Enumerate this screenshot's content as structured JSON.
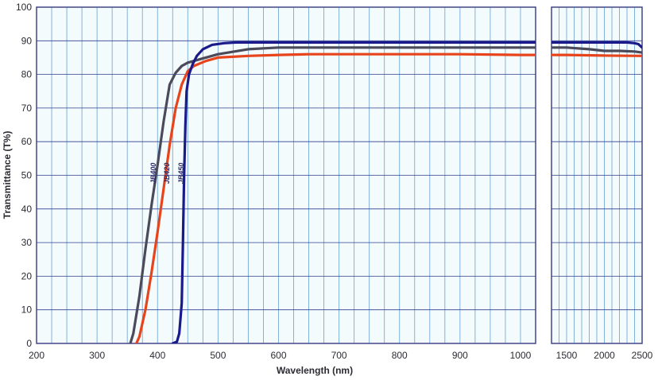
{
  "chart_data": {
    "type": "line",
    "xlabel": "Wavelength (nm)",
    "ylabel": "Transmittance (T%)",
    "ylim": [
      0,
      100
    ],
    "xlim_main": [
      200,
      1025
    ],
    "xlim_ext": [
      1300,
      2500
    ],
    "grid": true,
    "y_ticks": [
      "0",
      "10",
      "20",
      "30",
      "40",
      "50",
      "60",
      "70",
      "80",
      "90",
      "100"
    ],
    "x_ticks_main": [
      "200",
      "300",
      "400",
      "500",
      "600",
      "700",
      "800",
      "900",
      "1000"
    ],
    "x_ticks_ext": [
      "1500",
      "2000",
      "2500"
    ],
    "series": [
      {
        "name": "JB400",
        "color": "#4a4a5a",
        "x": [
          355,
          360,
          370,
          380,
          390,
          400,
          410,
          420,
          430,
          440,
          450,
          460,
          480,
          500,
          550,
          600,
          700,
          800,
          900,
          1000,
          1025,
          1300,
          1500,
          1800,
          2000,
          2200,
          2400,
          2500
        ],
        "y": [
          0,
          3,
          14,
          28,
          41,
          53,
          66,
          77,
          80.5,
          82.5,
          83.5,
          84,
          85,
          86,
          87.5,
          88,
          88,
          88,
          88,
          88,
          88,
          88,
          88,
          87.5,
          87,
          87,
          86.8,
          86.5
        ]
      },
      {
        "name": "JB420",
        "color": "#e8441c",
        "x": [
          365,
          370,
          380,
          390,
          400,
          410,
          420,
          430,
          440,
          450,
          460,
          480,
          500,
          550,
          600,
          650,
          700,
          800,
          900,
          1000,
          1025,
          1300,
          1500,
          2000,
          2500
        ],
        "y": [
          0,
          2,
          10,
          21,
          33,
          46,
          59,
          70,
          77,
          81,
          82.5,
          84,
          85,
          85.5,
          85.8,
          86,
          86,
          86,
          86,
          85.8,
          85.8,
          85.8,
          85.8,
          85.6,
          85.5
        ]
      },
      {
        "name": "JB450",
        "color": "#1a1a8a",
        "x": [
          425,
          432,
          436,
          440,
          442,
          444,
          446,
          448,
          452,
          458,
          465,
          475,
          490,
          510,
          530,
          600,
          700,
          800,
          900,
          1000,
          1025,
          1300,
          1500,
          2000,
          2300,
          2400,
          2450,
          2500
        ],
        "y": [
          0,
          0.5,
          3,
          12,
          30,
          50,
          65,
          75,
          80,
          83,
          85.5,
          87.5,
          88.8,
          89.3,
          89.5,
          89.5,
          89.5,
          89.5,
          89.5,
          89.5,
          89.5,
          89.5,
          89.5,
          89.5,
          89.5,
          89.3,
          89,
          88
        ]
      }
    ]
  }
}
